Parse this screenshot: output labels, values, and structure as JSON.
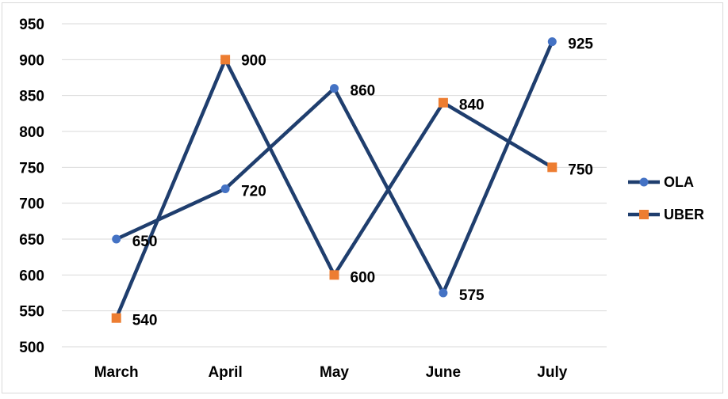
{
  "chart_data": {
    "type": "line",
    "title": "",
    "xlabel": "",
    "ylabel": "",
    "categories": [
      "March",
      "April",
      "May",
      "June",
      "July"
    ],
    "ylim": [
      500,
      950
    ],
    "yticks": [
      500,
      550,
      600,
      650,
      700,
      750,
      800,
      850,
      900,
      950
    ],
    "grid": true,
    "legend_position": "right",
    "series": [
      {
        "name": "OLA",
        "values": [
          650,
          720,
          860,
          575,
          925
        ],
        "line_color": "#1f3e6e",
        "marker": "circle",
        "marker_color": "#4472c4"
      },
      {
        "name": "UBER",
        "values": [
          540,
          900,
          600,
          840,
          750
        ],
        "line_color": "#1f3e6e",
        "marker": "square",
        "marker_color": "#ed7d31"
      }
    ]
  }
}
